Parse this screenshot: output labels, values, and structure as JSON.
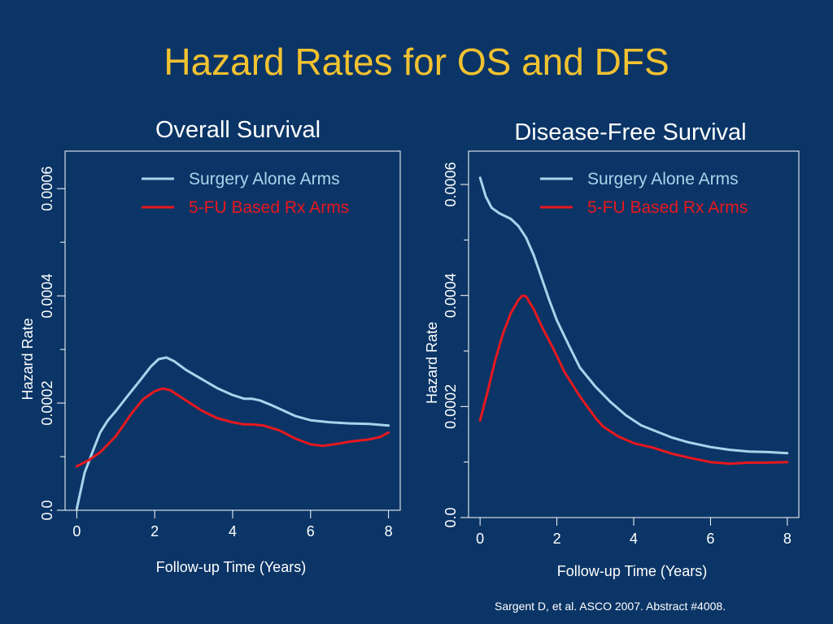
{
  "slide": {
    "title": "Hazard Rates for OS and DFS",
    "citation": "Sargent D, et al. ASCO 2007. Abstract #4008."
  },
  "colors": {
    "background": "#0b3566",
    "title": "#f2c230",
    "surgery_alone": "#a8d4ec",
    "fu_based": "#e8181e",
    "axis": "#ffffff"
  },
  "chart_data": [
    {
      "type": "line",
      "title": "Overall Survival",
      "xlabel": "Follow-up Time (Years)",
      "ylabel": "Hazard Rate",
      "xlim": [
        -0.3,
        8.3
      ],
      "ylim": [
        0,
        0.00067
      ],
      "x_ticks": [
        0,
        2,
        4,
        6,
        8
      ],
      "y_ticks": [
        0,
        0.0002,
        0.0004,
        0.0006
      ],
      "y_minor_ticks": [
        0.0001,
        0.0003,
        0.0005
      ],
      "x_tick_labels": [
        "0",
        "2",
        "4",
        "6",
        "8"
      ],
      "y_tick_labels": [
        "0.0",
        "0.0002",
        "0.0004",
        "0.0006"
      ],
      "legend_position": "top-right",
      "series": [
        {
          "name": "Surgery Alone Arms",
          "color": "#a8d4ec",
          "points": [
            [
              0.0,
              3e-06
            ],
            [
              0.2,
              7e-05
            ],
            [
              0.4,
              0.000108
            ],
            [
              0.6,
              0.000145
            ],
            [
              0.8,
              0.000168
            ],
            [
              1.0,
              0.000185
            ],
            [
              1.3,
              0.000213
            ],
            [
              1.6,
              0.00024
            ],
            [
              1.9,
              0.000268
            ],
            [
              2.1,
              0.000282
            ],
            [
              2.3,
              0.000285
            ],
            [
              2.5,
              0.000278
            ],
            [
              2.8,
              0.000262
            ],
            [
              3.2,
              0.000245
            ],
            [
              3.6,
              0.000228
            ],
            [
              4.0,
              0.000215
            ],
            [
              4.3,
              0.000208
            ],
            [
              4.5,
              0.000208
            ],
            [
              4.7,
              0.000205
            ],
            [
              5.0,
              0.000196
            ],
            [
              5.3,
              0.000186
            ],
            [
              5.6,
              0.000176
            ],
            [
              6.0,
              0.000168
            ],
            [
              6.5,
              0.000164
            ],
            [
              7.0,
              0.000162
            ],
            [
              7.5,
              0.000161
            ],
            [
              8.0,
              0.000158
            ]
          ]
        },
        {
          "name": "5-FU Based Rx Arms",
          "color": "#e8181e",
          "points": [
            [
              0.0,
              8.2e-05
            ],
            [
              0.3,
              9.3e-05
            ],
            [
              0.6,
              0.000108
            ],
            [
              1.0,
              0.000138
            ],
            [
              1.4,
              0.00018
            ],
            [
              1.7,
              0.000207
            ],
            [
              2.0,
              0.000222
            ],
            [
              2.2,
              0.000227
            ],
            [
              2.4,
              0.000224
            ],
            [
              2.8,
              0.000205
            ],
            [
              3.2,
              0.000186
            ],
            [
              3.6,
              0.000172
            ],
            [
              4.0,
              0.000164
            ],
            [
              4.3,
              0.00016
            ],
            [
              4.5,
              0.00016
            ],
            [
              4.8,
              0.000158
            ],
            [
              5.2,
              0.000149
            ],
            [
              5.6,
              0.000134
            ],
            [
              6.0,
              0.000123
            ],
            [
              6.3,
              0.00012
            ],
            [
              6.7,
              0.000124
            ],
            [
              7.0,
              0.000128
            ],
            [
              7.5,
              0.000132
            ],
            [
              7.8,
              0.000137
            ],
            [
              8.0,
              0.000145
            ]
          ]
        }
      ]
    },
    {
      "type": "line",
      "title": "Disease-Free Survival",
      "xlabel": "Follow-up Time (Years)",
      "ylabel": "Hazard Rate",
      "xlim": [
        -0.3,
        8.3
      ],
      "ylim": [
        0,
        0.00066
      ],
      "x_ticks": [
        0,
        2,
        4,
        6,
        8
      ],
      "y_ticks": [
        0,
        0.0002,
        0.0004,
        0.0006
      ],
      "y_minor_ticks": [
        0.0001,
        0.0003,
        0.0005
      ],
      "x_tick_labels": [
        "0",
        "2",
        "4",
        "6",
        "8"
      ],
      "y_tick_labels": [
        "0.0",
        "0.0002",
        "0.0004",
        "0.0006"
      ],
      "legend_position": "top-right",
      "series": [
        {
          "name": "Surgery Alone Arms",
          "color": "#a8d4ec",
          "points": [
            [
              0.0,
              0.000612
            ],
            [
              0.15,
              0.000578
            ],
            [
              0.3,
              0.000558
            ],
            [
              0.5,
              0.000548
            ],
            [
              0.8,
              0.000538
            ],
            [
              1.0,
              0.000525
            ],
            [
              1.2,
              0.000504
            ],
            [
              1.4,
              0.000472
            ],
            [
              1.6,
              0.000432
            ],
            [
              1.8,
              0.000392
            ],
            [
              2.0,
              0.000355
            ],
            [
              2.3,
              0.000312
            ],
            [
              2.6,
              0.00027
            ],
            [
              3.0,
              0.000236
            ],
            [
              3.4,
              0.000208
            ],
            [
              3.8,
              0.000184
            ],
            [
              4.2,
              0.000166
            ],
            [
              4.6,
              0.000155
            ],
            [
              5.0,
              0.000144
            ],
            [
              5.4,
              0.000136
            ],
            [
              6.0,
              0.000127
            ],
            [
              6.5,
              0.000122
            ],
            [
              7.0,
              0.000119
            ],
            [
              7.5,
              0.000118
            ],
            [
              8.0,
              0.000116
            ]
          ]
        },
        {
          "name": "5-FU Based Rx Arms",
          "color": "#e8181e",
          "points": [
            [
              0.0,
              0.000175
            ],
            [
              0.2,
              0.000228
            ],
            [
              0.4,
              0.000285
            ],
            [
              0.6,
              0.000332
            ],
            [
              0.8,
              0.000368
            ],
            [
              1.0,
              0.000392
            ],
            [
              1.1,
              0.0004
            ],
            [
              1.2,
              0.000398
            ],
            [
              1.4,
              0.000375
            ],
            [
              1.6,
              0.000345
            ],
            [
              1.9,
              0.000305
            ],
            [
              2.2,
              0.000262
            ],
            [
              2.6,
              0.000218
            ],
            [
              3.0,
              0.00018
            ],
            [
              3.2,
              0.000164
            ],
            [
              3.6,
              0.000146
            ],
            [
              4.0,
              0.000134
            ],
            [
              4.5,
              0.000126
            ],
            [
              5.0,
              0.000115
            ],
            [
              5.5,
              0.000107
            ],
            [
              6.0,
              0.0001
            ],
            [
              6.5,
              9.7e-05
            ],
            [
              7.0,
              9.9e-05
            ],
            [
              7.5,
              9.9e-05
            ],
            [
              8.0,
              0.0001
            ]
          ]
        }
      ]
    }
  ]
}
